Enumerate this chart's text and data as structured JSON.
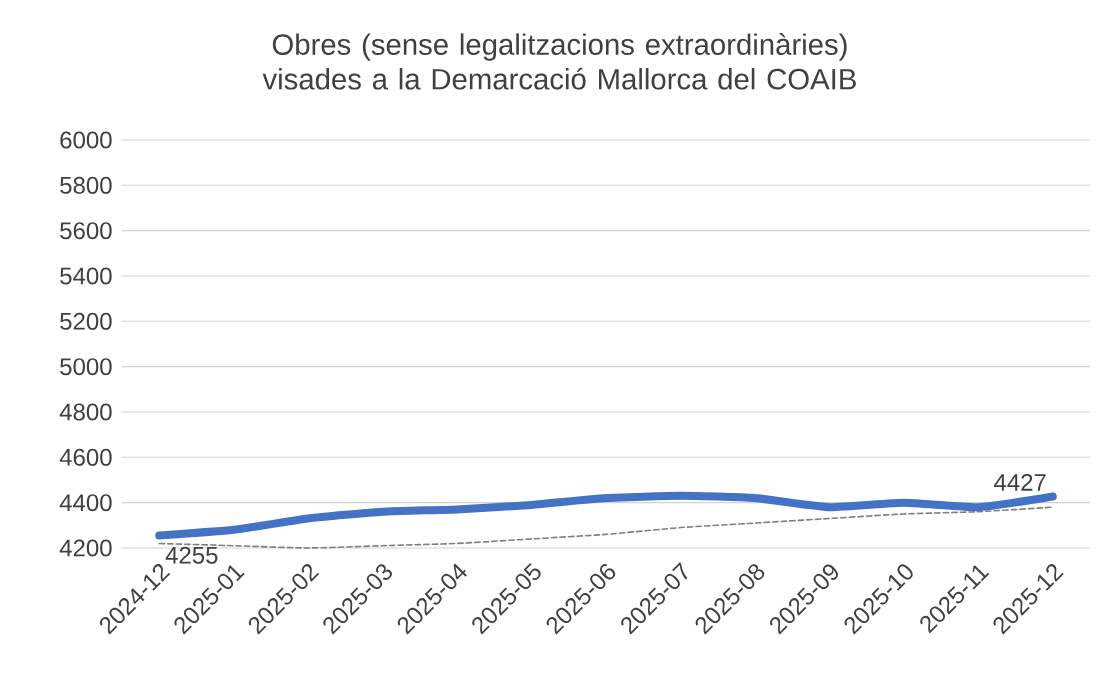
{
  "chart_data": {
    "type": "line",
    "title": "Obres (sense legalitzacions extraordinàries) visades a la Demarcació Mallorca del COAIB",
    "categories": [
      "2024-12",
      "2025-01",
      "2025-02",
      "2025-03",
      "2025-04",
      "2025-05",
      "2025-06",
      "2025-07",
      "2025-08",
      "2025-09",
      "2025-10",
      "2025-11",
      "2025-12"
    ],
    "series": [
      {
        "color": "#4472c4",
        "values": [
          4255,
          4280,
          4330,
          4360,
          4370,
          4390,
          4420,
          4430,
          4420,
          4380,
          4400,
          4380,
          4427
        ],
        "value_labels": [
          "4255",
          null,
          null,
          null,
          null,
          null,
          null,
          null,
          null,
          null,
          null,
          null,
          "4427"
        ]
      },
      {
        "color": "#7f7f7f",
        "line_style": "dashed",
        "values": [
          4220,
          4210,
          4200,
          4210,
          4220,
          4240,
          4260,
          4290,
          4310,
          4330,
          4350,
          4360,
          4380
        ]
      }
    ],
    "ylim": [
      4200,
      6000
    ],
    "yticks": [
      4200,
      4400,
      4600,
      4800,
      5000,
      5200,
      5400,
      5600,
      5800,
      6000
    ],
    "grid": "y",
    "marker": "none"
  }
}
